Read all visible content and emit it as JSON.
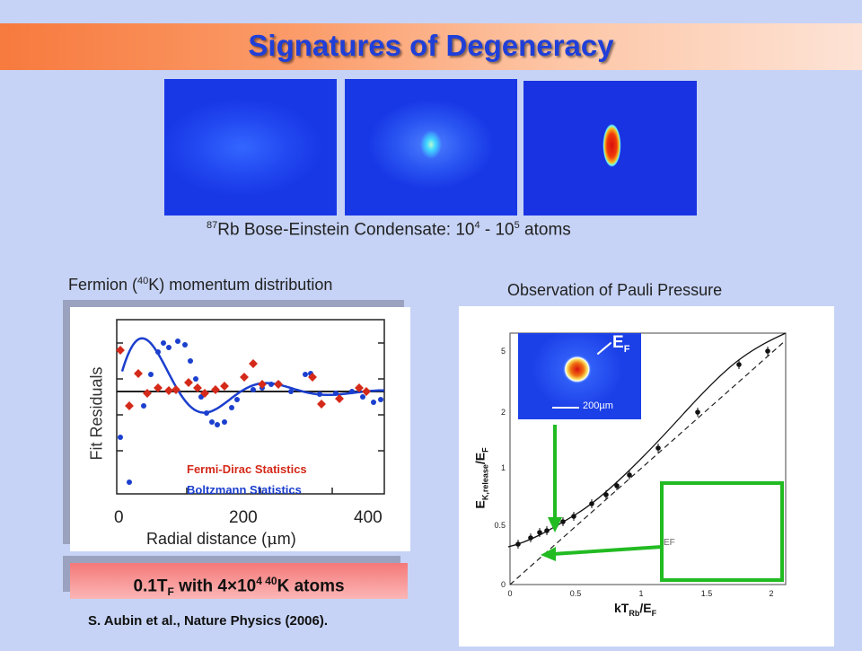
{
  "slide": {
    "title": "Signatures of Degeneracy",
    "bec_caption": {
      "iso": "87",
      "pre": "Rb Bose-Einstein Condensate: 10",
      "exp1": "4",
      "mid": " - 10",
      "exp2": "5",
      "post": " atoms"
    },
    "fermion_caption": {
      "pre": "Fermion (",
      "iso": "40",
      "post": "K) momentum distribution"
    },
    "pauli_caption": "Observation of Pauli Pressure",
    "left_plot": {
      "ylabel": "Fit Residuals",
      "xlabel_pre": "Radial distance (",
      "xlabel_mu": "μ",
      "xlabel_post": "m)",
      "xticks": [
        "0",
        "200",
        "400"
      ],
      "legend_fd": "Fermi-Dirac Statistics",
      "legend_b": "Boltzmann Statistics",
      "colors": {
        "fd": "#d42a1a",
        "b": "#1b3fce",
        "fit": "#1b3fce"
      }
    },
    "highlight": {
      "pre": "0.1T",
      "sub": "F",
      "mid": " with 4",
      "times": "×",
      "num": "10",
      "exp": "4",
      "iso": " 40",
      "post": "K atoms"
    },
    "reference": "S. Aubin et al., Nature Physics (2006).",
    "right_plot": {
      "ylabel_pre": "E",
      "ylabel_sub": "K,release",
      "ylabel_mid": "/E",
      "ylabel_sub2": "F",
      "xlabel_pre": "kT",
      "xlabel_sub": "Rb",
      "xlabel_mid": "/E",
      "xlabel_sub2": "F",
      "ef_label": "E",
      "ef_sub": "F",
      "inset_scale": "200µm",
      "xticks": [
        "0",
        "0.5",
        "1",
        "1.5",
        "2"
      ],
      "yticks": [
        "0",
        "0.5",
        "1",
        "2",
        "5"
      ],
      "fermi_diagram_label": "EF"
    }
  }
}
